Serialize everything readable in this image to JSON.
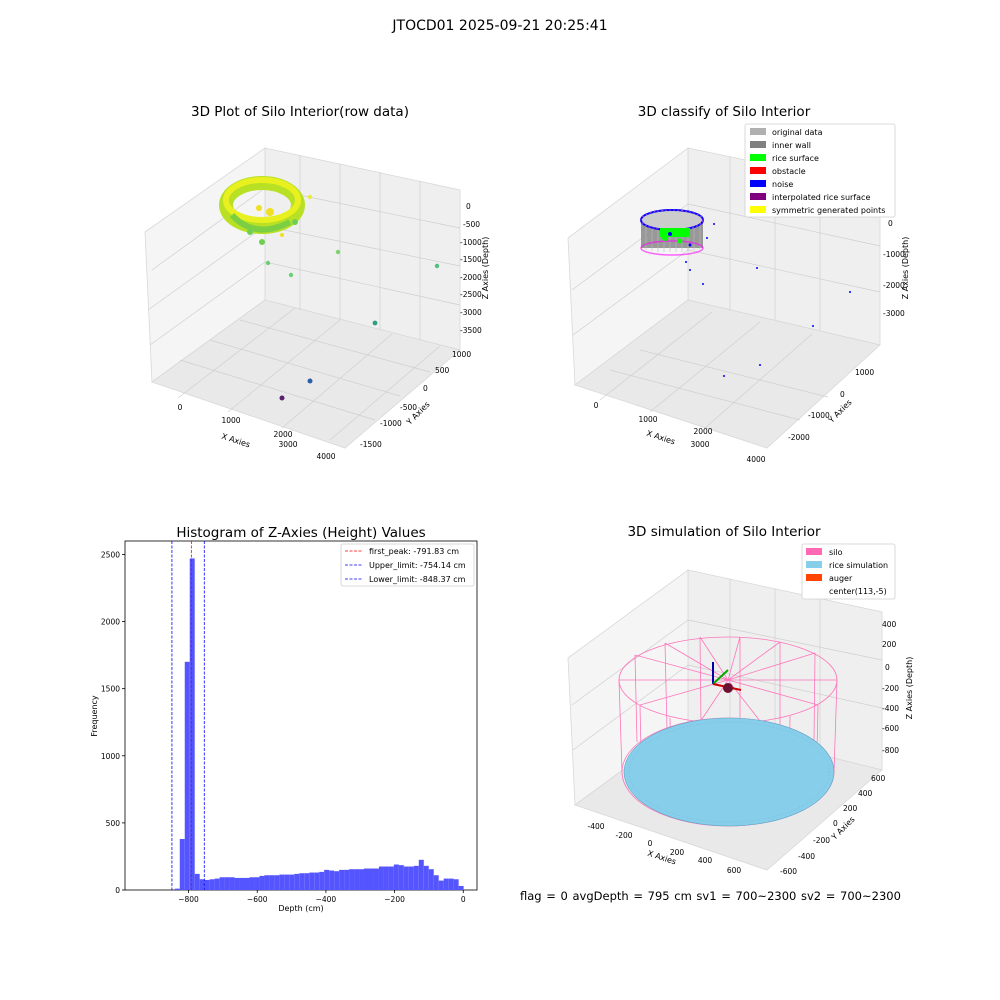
{
  "figure_title": "JTOCD01 2025-09-21 20:25:41",
  "footer": "flag = 0     avgDepth = 795 cm  sv1 = 700~2300  sv2 = 700~2300",
  "colors": {
    "original": "#b0b0b0",
    "inner_wall": "#808080",
    "rice_surface": "#00ff00",
    "obstacle": "#ff0000",
    "noise": "#0000ff",
    "interpolated": "#800080",
    "symmetric": "#ffff00",
    "hist_bar": "#5555ff",
    "silo": "#ff69b4",
    "rice_sim": "#87ceeb",
    "auger": "#ff4500"
  },
  "chart_data": [
    {
      "type": "scatter",
      "title": "3D Plot of Silo Interior(row data)",
      "xlabel": "X Axies",
      "ylabel": "Y Axies",
      "zlabel": "Z Axies (Depth)",
      "xticks": [
        "0",
        "1000",
        "2000",
        "3000",
        "4000"
      ],
      "yticks": [
        "-1500",
        "-1000",
        "-500",
        "0",
        "500",
        "1000"
      ],
      "zticks": [
        "0",
        "-500",
        "-1000",
        "-1500",
        "-2000",
        "-2500",
        "-3000",
        "-3500"
      ]
    },
    {
      "type": "scatter",
      "title": "3D classify of Silo Interior",
      "xlabel": "X Axies",
      "ylabel": "Y Axies",
      "zlabel": "Z Axies (Depth)",
      "xticks": [
        "0",
        "1000",
        "2000",
        "3000",
        "4000"
      ],
      "yticks": [
        "-2000",
        "-1000",
        "0",
        "1000"
      ],
      "zticks": [
        "0",
        "-1000",
        "-2000",
        "-3000"
      ],
      "legend": [
        "original data",
        "inner wall",
        "rice surface",
        "obstacle",
        "noise",
        "interpolated rice surface",
        "symmetric generated points"
      ],
      "legend_position": "top-right"
    },
    {
      "type": "bar",
      "title": "Histogram of Z-Axies (Height) Values",
      "xlabel": "Depth (cm)",
      "ylabel": "Frequency",
      "xlim": [
        -985,
        40
      ],
      "ylim": [
        0,
        2600
      ],
      "xticks": [
        -800,
        -600,
        -400,
        -200,
        0
      ],
      "yticks": [
        0,
        500,
        1000,
        1500,
        2000,
        2500
      ],
      "bin_width": 14.5,
      "bins": [
        {
          "x": -840.0,
          "value": 10
        },
        {
          "x": -825.5,
          "value": 380
        },
        {
          "x": -811.0,
          "value": 1700
        },
        {
          "x": -796.5,
          "value": 2470
        },
        {
          "x": -782.0,
          "value": 120
        },
        {
          "x": -767.5,
          "value": 80
        },
        {
          "x": -753.0,
          "value": 75
        },
        {
          "x": -738.5,
          "value": 80
        },
        {
          "x": -724.0,
          "value": 85
        },
        {
          "x": -709.5,
          "value": 95
        },
        {
          "x": -695.0,
          "value": 95
        },
        {
          "x": -680.5,
          "value": 95
        },
        {
          "x": -666.0,
          "value": 90
        },
        {
          "x": -651.5,
          "value": 90
        },
        {
          "x": -637.0,
          "value": 90
        },
        {
          "x": -622.5,
          "value": 95
        },
        {
          "x": -608.0,
          "value": 95
        },
        {
          "x": -593.5,
          "value": 105
        },
        {
          "x": -579.0,
          "value": 110
        },
        {
          "x": -564.5,
          "value": 110
        },
        {
          "x": -550.0,
          "value": 110
        },
        {
          "x": -535.5,
          "value": 115
        },
        {
          "x": -521.0,
          "value": 115
        },
        {
          "x": -506.5,
          "value": 115
        },
        {
          "x": -492.0,
          "value": 120
        },
        {
          "x": -477.5,
          "value": 125
        },
        {
          "x": -463.0,
          "value": 125
        },
        {
          "x": -448.5,
          "value": 130
        },
        {
          "x": -434.0,
          "value": 130
        },
        {
          "x": -419.5,
          "value": 135
        },
        {
          "x": -405.0,
          "value": 150
        },
        {
          "x": -390.5,
          "value": 145
        },
        {
          "x": -376.0,
          "value": 140
        },
        {
          "x": -361.5,
          "value": 150
        },
        {
          "x": -347.0,
          "value": 150
        },
        {
          "x": -332.5,
          "value": 155
        },
        {
          "x": -318.0,
          "value": 155
        },
        {
          "x": -303.5,
          "value": 155
        },
        {
          "x": -289.0,
          "value": 160
        },
        {
          "x": -274.5,
          "value": 160
        },
        {
          "x": -260.0,
          "value": 160
        },
        {
          "x": -245.5,
          "value": 175
        },
        {
          "x": -231.0,
          "value": 175
        },
        {
          "x": -216.5,
          "value": 175
        },
        {
          "x": -202.0,
          "value": 190
        },
        {
          "x": -187.5,
          "value": 185
        },
        {
          "x": -173.0,
          "value": 175
        },
        {
          "x": -158.5,
          "value": 175
        },
        {
          "x": -144.0,
          "value": 180
        },
        {
          "x": -129.5,
          "value": 225
        },
        {
          "x": -115.0,
          "value": 180
        },
        {
          "x": -100.5,
          "value": 155
        },
        {
          "x": -86.0,
          "value": 110
        },
        {
          "x": -71.5,
          "value": 70
        },
        {
          "x": -57.0,
          "value": 85
        },
        {
          "x": -42.5,
          "value": 85
        },
        {
          "x": -28.0,
          "value": 80
        },
        {
          "x": -13.5,
          "value": 30
        }
      ],
      "vlines": [
        {
          "label": "first_peak: -791.83 cm",
          "x": -791.83,
          "color": "#ff0000"
        },
        {
          "label": "Upper_limit: -754.14 cm",
          "x": -754.14,
          "color": "#0000ff"
        },
        {
          "label": "Lower_limit: -848.37 cm",
          "x": -848.37,
          "color": "#0000ff"
        }
      ],
      "legend_position": "top-right"
    },
    {
      "type": "scatter",
      "title": "3D simulation of Silo Interior",
      "xlabel": "X Axies",
      "ylabel": "Y Axies",
      "zlabel": "Z Axies (Depth)",
      "xticks": [
        "-400",
        "-200",
        "0",
        "200",
        "400",
        "600"
      ],
      "yticks": [
        "-600",
        "-400",
        "-200",
        "0",
        "200",
        "400",
        "600"
      ],
      "zticks": [
        "400",
        "200",
        "0",
        "-200",
        "-400",
        "-600",
        "-800"
      ],
      "legend": [
        "silo",
        "rice simulation",
        "auger",
        "center(113,-5)"
      ],
      "legend_position": "top-right"
    }
  ]
}
